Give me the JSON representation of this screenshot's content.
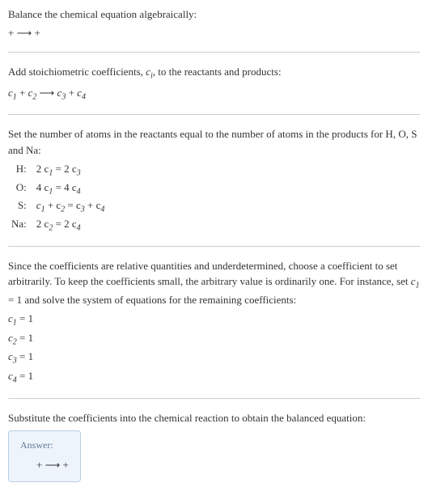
{
  "header": {
    "title": "Balance the chemical equation algebraically:",
    "reaction": " +  ⟶  + "
  },
  "step1": {
    "text_before": "Add stoichiometric coefficients, ",
    "ci_symbol": "c",
    "ci_sub": "i",
    "text_after": ", to the reactants and products:",
    "reaction_c1": "c",
    "reaction_c1_sub": "1",
    "reaction_plus1": " + ",
    "reaction_c2": "c",
    "reaction_c2_sub": "2",
    "reaction_arrow": "  ⟶ ",
    "reaction_c3": "c",
    "reaction_c3_sub": "3",
    "reaction_plus2": " + ",
    "reaction_c4": "c",
    "reaction_c4_sub": "4"
  },
  "step2": {
    "text": "Set the number of atoms in the reactants equal to the number of atoms in the products for H, O, S and Na:",
    "rows": {
      "H": {
        "label": "H:",
        "eq_left": "2 c",
        "eq_left_sub": "1",
        "eq_mid": " = 2 c",
        "eq_right_sub": "3"
      },
      "O": {
        "label": "O:",
        "eq_left": "4 c",
        "eq_left_sub": "1",
        "eq_mid": " = 4 c",
        "eq_right_sub": "4"
      },
      "S": {
        "label": "S:",
        "eq_left": "c",
        "eq_left_sub": "1",
        "eq_plus": " + c",
        "eq_plus_sub": "2",
        "eq_mid": " = c",
        "eq_mid_sub": "3",
        "eq_plus2": " + c",
        "eq_right_sub": "4"
      },
      "Na": {
        "label": "Na:",
        "eq_left": "2 c",
        "eq_left_sub": "2",
        "eq_mid": " = 2 c",
        "eq_right_sub": "4"
      }
    }
  },
  "step3": {
    "text_before": "Since the coefficients are relative quantities and underdetermined, choose a coefficient to set arbitrarily. To keep the coefficients small, the arbitrary value is ordinarily one. For instance, set ",
    "c1": "c",
    "c1_sub": "1",
    "text_after": " = 1 and solve the system of equations for the remaining coefficients:",
    "solutions": {
      "c1": {
        "sym": "c",
        "sub": "1",
        "val": " = 1"
      },
      "c2": {
        "sym": "c",
        "sub": "2",
        "val": " = 1"
      },
      "c3": {
        "sym": "c",
        "sub": "3",
        "val": " = 1"
      },
      "c4": {
        "sym": "c",
        "sub": "4",
        "val": " = 1"
      }
    }
  },
  "step4": {
    "text": "Substitute the coefficients into the chemical reaction to obtain the balanced equation:"
  },
  "answer": {
    "label": "Answer:",
    "content": " +  ⟶  + "
  },
  "colors": {
    "text": "#333333",
    "divider": "#cccccc",
    "answer_bg": "#eef4fb",
    "answer_border": "#b8cfe5",
    "answer_label": "#5d7a9a"
  }
}
